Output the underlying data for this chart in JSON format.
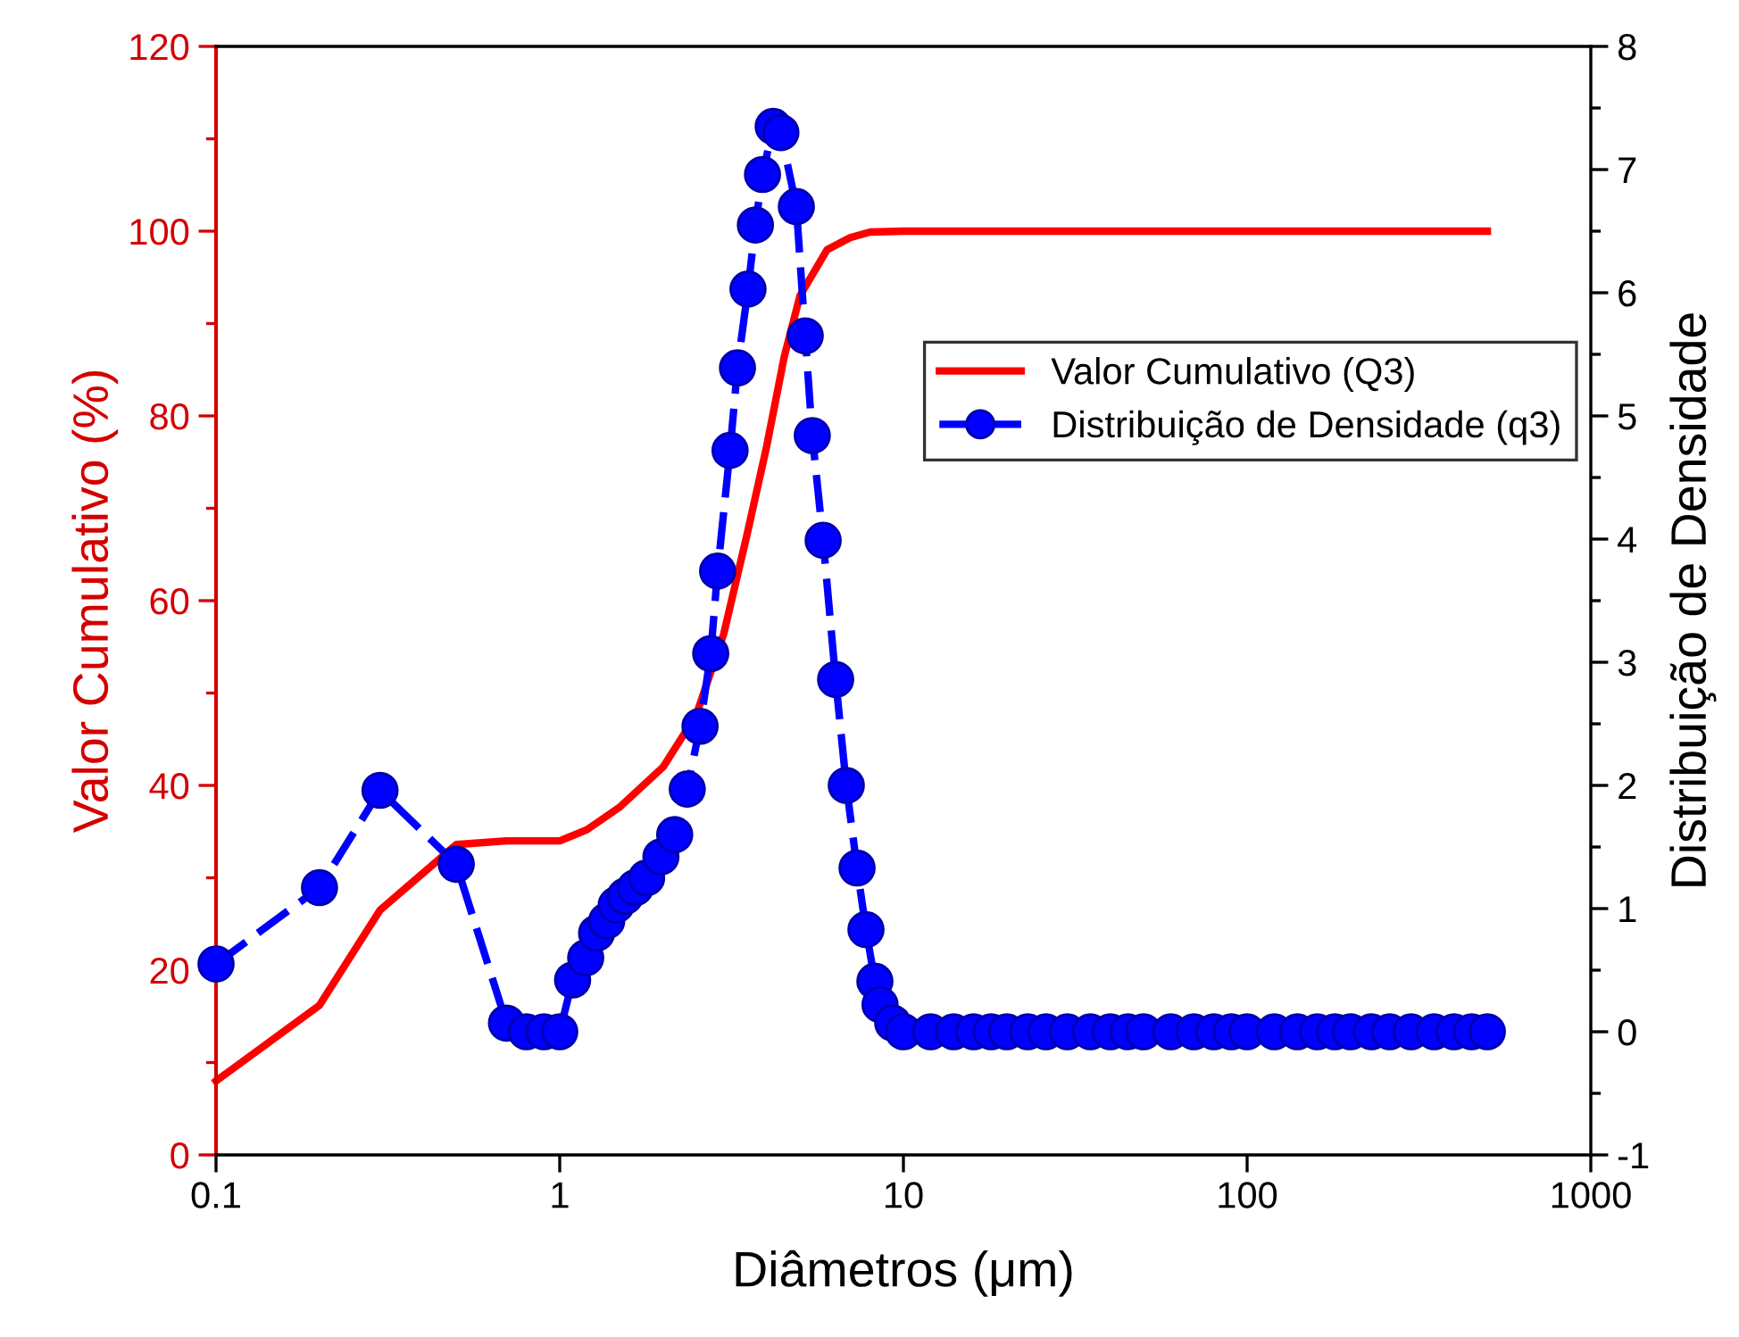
{
  "chart_data": {
    "type": "line",
    "xlabel": "Diâmetros (μm)",
    "ylabel": "Valor Cumulativo (%)",
    "y2label": "Distribuição de Densidade",
    "log": "x",
    "xlim": [
      0.1,
      1000
    ],
    "xticks": [
      0.1,
      1,
      10,
      100,
      1000
    ],
    "ylim": [
      0,
      120
    ],
    "yticks": [
      0,
      20,
      40,
      60,
      80,
      100,
      120
    ],
    "y2lim": [
      -1,
      8
    ],
    "y2ticks": [
      -1,
      0,
      1,
      2,
      3,
      4,
      5,
      6,
      7,
      8
    ],
    "grid": false,
    "legend": "right",
    "series": [
      {
        "name": "Valor Cumulativo (Q3)",
        "color": "#ff0000",
        "marker": "none",
        "line_style": "solid",
        "x": [
          0.1,
          0.2,
          0.3,
          0.5,
          0.7,
          1.0,
          1.2,
          1.5,
          2.0,
          2.5,
          3.0,
          3.5,
          4.0,
          4.5,
          5.0,
          6.0,
          7.0,
          8.0,
          10,
          500
        ],
        "values": [
          8,
          16.2,
          26.5,
          33.6,
          34,
          34,
          35.2,
          37.7,
          42,
          47.7,
          56.4,
          67,
          76.7,
          86.4,
          93,
          98,
          99.3,
          99.9,
          100,
          100
        ]
      },
      {
        "name": "Distribuição de Densidade (q3)",
        "color": "#0000ff",
        "axis": "y2",
        "marker": "circle",
        "line_style": "dashed",
        "x": [
          0.1,
          0.2,
          0.3,
          0.5,
          0.7,
          0.8,
          0.9,
          1.0,
          1.09,
          1.19,
          1.28,
          1.37,
          1.46,
          1.55,
          1.66,
          1.79,
          1.97,
          2.16,
          2.35,
          2.56,
          2.75,
          2.88,
          3.13,
          3.29,
          3.53,
          3.71,
          3.89,
          4.18,
          4.4,
          4.88,
          5.18,
          5.43,
          5.84,
          6.35,
          6.82,
          7.33,
          7.78,
          8.26,
          8.55,
          9.31,
          10,
          12,
          14,
          16,
          18,
          20,
          23,
          26,
          30,
          35,
          40,
          45,
          50,
          60,
          70,
          80,
          90,
          100,
          120,
          140,
          160,
          180,
          200,
          230,
          260,
          300,
          350,
          400,
          450,
          500
        ],
        "values": [
          0.55,
          1.17,
          1.96,
          1.36,
          0.07,
          0,
          0,
          0,
          0.42,
          0.6,
          0.8,
          0.9,
          1.03,
          1.1,
          1.17,
          1.25,
          1.42,
          1.6,
          1.97,
          2.48,
          3.07,
          3.74,
          4.72,
          5.39,
          6.03,
          6.55,
          6.96,
          7.35,
          7.3,
          6.7,
          5.65,
          4.84,
          3.99,
          2.86,
          2.0,
          1.33,
          0.83,
          0.41,
          0.22,
          0.07,
          0,
          0,
          0,
          0,
          0,
          0,
          0,
          0,
          0,
          0,
          0,
          0,
          0,
          0,
          0,
          0,
          0,
          0,
          0,
          0,
          0,
          0,
          0,
          0,
          0,
          0,
          0,
          0,
          0,
          0
        ]
      }
    ]
  }
}
